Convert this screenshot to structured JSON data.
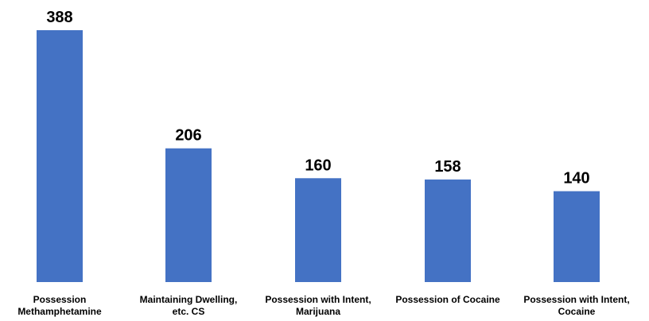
{
  "chart_data": {
    "type": "bar",
    "categories": [
      [
        "Possession",
        "Methamphetamine"
      ],
      [
        "Maintaining Dwelling,",
        "etc. CS"
      ],
      [
        "Possession with Intent,",
        "Marijuana"
      ],
      [
        "Possession of Cocaine"
      ],
      [
        "Possession with Intent,",
        "Cocaine"
      ]
    ],
    "values": [
      388,
      206,
      160,
      158,
      140
    ],
    "data_labels": [
      "388",
      "206",
      "160",
      "158",
      "140"
    ],
    "title": "",
    "xlabel": "",
    "ylabel": "",
    "ylim": [
      0,
      388
    ],
    "grid": false,
    "legend": "none",
    "bar_color": "#4472C4"
  }
}
